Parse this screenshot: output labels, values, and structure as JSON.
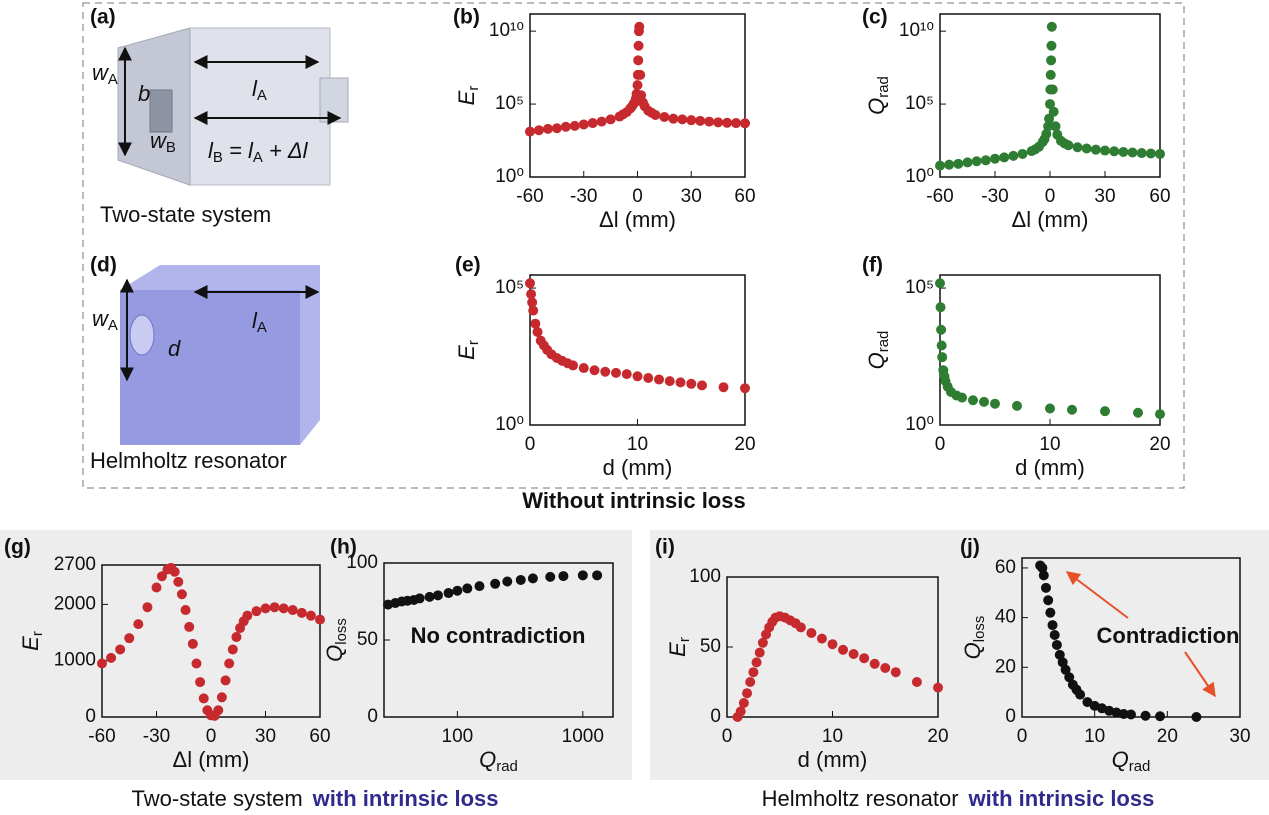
{
  "panels": {
    "a": "(a)",
    "d": "(d)"
  },
  "illustration_a": {
    "w_A": {
      "text": "w",
      "sub": "A"
    },
    "b": "b",
    "w_B": {
      "text": "w",
      "sub": "B"
    },
    "l_A": {
      "text": "l",
      "sub": "A"
    },
    "l_B": [
      {
        "text": "l",
        "sub": "B"
      },
      {
        "text": " = l",
        "sub": "A"
      },
      {
        "text": " + Δl"
      }
    ],
    "caption": "Two-state system"
  },
  "illustration_d": {
    "w_A": {
      "text": "w",
      "sub": "A"
    },
    "d": "d",
    "l_A": {
      "text": "l",
      "sub": "A"
    },
    "caption": "Helmholtz resonator"
  },
  "box_caption": "Without intrinsic loss",
  "bottom_captions": [
    {
      "text": "Two-state system",
      "highlight": "with intrinsic loss"
    },
    {
      "text": "Helmholtz resonator",
      "highlight": "with intrinsic loss"
    }
  ],
  "chart_data": [
    {
      "type": "scatter",
      "panel": "(b)",
      "color": "#c62a2f",
      "x": [
        -60,
        -55,
        -50,
        -45,
        -40,
        -35,
        -30,
        -25,
        -20,
        -15,
        -10,
        -8,
        -6,
        -4,
        -3,
        -2,
        -1,
        -0.5,
        0,
        0.2,
        0.4,
        0.6,
        0.8,
        1,
        1.5,
        2,
        3,
        4,
        6,
        8,
        10,
        15,
        20,
        25,
        30,
        35,
        40,
        45,
        50,
        55,
        60
      ],
      "values": [
        1300,
        1600,
        2000,
        2200,
        2800,
        3200,
        4000,
        5000,
        6300,
        8900,
        14000,
        20000,
        28000,
        50000,
        71000,
        110000,
        220000,
        500000,
        2000000,
        10000000.0,
        100000000.0,
        1000000000.0,
        10000000000.0,
        20000000000.0,
        10000000.0,
        400000,
        130000,
        71000,
        35000,
        25000,
        18000,
        13000,
        10000,
        8900,
        7900,
        7100,
        6300,
        5600,
        5200,
        5000,
        4800
      ],
      "xlim": [
        -60,
        60
      ],
      "xticks": [
        -60,
        -30,
        0,
        30,
        60
      ],
      "ylim": [
        1,
        150000000000.0
      ],
      "ylog": true,
      "yticks": [
        {
          "value": 1,
          "label": "10⁰"
        },
        {
          "value": 100000,
          "label": "10⁵"
        },
        {
          "value": 10000000000.0,
          "label": "10¹⁰"
        }
      ],
      "xlabel": "Δl (mm)",
      "ylabel": {
        "text": "E",
        "sub": "r"
      }
    },
    {
      "type": "scatter",
      "panel": "(c)",
      "color": "#2e7d32",
      "x": [
        -60,
        -55,
        -50,
        -45,
        -40,
        -35,
        -30,
        -25,
        -20,
        -15,
        -10,
        -8,
        -6,
        -4,
        -3,
        -2,
        -1,
        -0.5,
        0,
        0.2,
        0.4,
        0.6,
        0.8,
        1,
        1.5,
        2,
        3,
        4,
        6,
        8,
        10,
        15,
        20,
        25,
        30,
        35,
        40,
        45,
        50,
        55,
        60
      ],
      "values": [
        6,
        7,
        8,
        10,
        12,
        14,
        18,
        22,
        28,
        38,
        60,
        80,
        120,
        250,
        400,
        900,
        3000,
        10000,
        100000,
        1000000.0,
        10000000.0,
        100000000.0,
        1000000000.0,
        20000000000.0,
        1000000.0,
        30000,
        3000,
        800,
        300,
        200,
        150,
        110,
        90,
        75,
        65,
        58,
        52,
        48,
        44,
        41,
        38
      ],
      "xlim": [
        -60,
        60
      ],
      "xticks": [
        -60,
        -30,
        0,
        30,
        60
      ],
      "ylim": [
        1,
        150000000000.0
      ],
      "ylog": true,
      "yticks": [
        {
          "value": 1,
          "label": "10⁰"
        },
        {
          "value": 100000,
          "label": "10⁵"
        },
        {
          "value": 10000000000.0,
          "label": "10¹⁰"
        }
      ],
      "xlabel": "Δl (mm)",
      "ylabel": {
        "text": "Q",
        "sub": "rad"
      }
    },
    {
      "type": "scatter",
      "panel": "(e)",
      "color": "#c62a2f",
      "x": [
        0,
        0.1,
        0.2,
        0.3,
        0.5,
        0.7,
        1,
        1.3,
        1.6,
        2,
        2.5,
        3,
        3.5,
        4,
        5,
        6,
        7,
        8,
        9,
        10,
        11,
        12,
        13,
        14,
        15,
        16,
        18,
        20
      ],
      "values": [
        150000,
        60000,
        30000,
        15000,
        5000,
        2500,
        1200,
        800,
        550,
        380,
        280,
        220,
        180,
        150,
        120,
        100,
        88,
        80,
        72,
        60,
        52,
        46,
        40,
        36,
        32,
        28,
        24,
        22
      ],
      "xlim": [
        0,
        20
      ],
      "xticks": [
        0,
        10,
        20
      ],
      "ylim": [
        1,
        300000
      ],
      "ylog": true,
      "yticks": [
        {
          "value": 1,
          "label": "10⁰"
        },
        {
          "value": 100000,
          "label": "10⁵"
        }
      ],
      "xlabel": "d (mm)",
      "ylabel": {
        "text": "E",
        "sub": "r"
      }
    },
    {
      "type": "scatter",
      "panel": "(f)",
      "color": "#2e7d32",
      "x": [
        0,
        0.05,
        0.1,
        0.15,
        0.2,
        0.3,
        0.4,
        0.5,
        0.7,
        1,
        1.5,
        2,
        3,
        4,
        5,
        7,
        10,
        12,
        15,
        18,
        20
      ],
      "values": [
        150000,
        20000,
        3000,
        800,
        300,
        100,
        60,
        40,
        25,
        16,
        12,
        10,
        8,
        7,
        6,
        5,
        4,
        3.6,
        3.2,
        2.8,
        2.5
      ],
      "xlim": [
        0,
        20
      ],
      "xticks": [
        0,
        10,
        20
      ],
      "ylim": [
        1,
        300000
      ],
      "ylog": true,
      "yticks": [
        {
          "value": 1,
          "label": "10⁰"
        },
        {
          "value": 100000,
          "label": "10⁵"
        }
      ],
      "xlabel": "d (mm)",
      "ylabel": {
        "text": "Q",
        "sub": "rad"
      }
    },
    {
      "type": "scatter",
      "panel": "(g)",
      "color": "#c62a2f",
      "x": [
        -60,
        -55,
        -50,
        -45,
        -40,
        -35,
        -30,
        -27,
        -24,
        -22,
        -20,
        -18,
        -16,
        -14,
        -12,
        -10,
        -8,
        -6,
        -4,
        -2,
        0,
        2,
        4,
        6,
        8,
        10,
        12,
        14,
        16,
        18,
        20,
        25,
        30,
        35,
        40,
        45,
        50,
        55,
        60
      ],
      "values": [
        950,
        1050,
        1200,
        1400,
        1650,
        1950,
        2300,
        2500,
        2620,
        2650,
        2580,
        2400,
        2180,
        1900,
        1600,
        1300,
        950,
        620,
        330,
        120,
        30,
        20,
        120,
        350,
        650,
        950,
        1200,
        1420,
        1580,
        1700,
        1800,
        1880,
        1930,
        1950,
        1930,
        1900,
        1850,
        1800,
        1730
      ],
      "xlim": [
        -60,
        60
      ],
      "xticks": [
        -60,
        -30,
        0,
        30,
        60
      ],
      "ylim": [
        0,
        2700
      ],
      "yticks": [
        0,
        1000,
        2000,
        2700
      ],
      "xlabel": "Δl (mm)",
      "ylabel": {
        "text": "E",
        "sub": "r"
      }
    },
    {
      "type": "scatter",
      "panel": "(h)",
      "color": "#111111",
      "x": [
        28,
        32,
        36,
        40,
        45,
        50,
        60,
        70,
        85,
        100,
        120,
        150,
        200,
        250,
        320,
        400,
        550,
        700,
        1000,
        1300
      ],
      "values": [
        73,
        74,
        75,
        75.5,
        76,
        77,
        78,
        79,
        80.5,
        82,
        83.5,
        85,
        86.5,
        88,
        89,
        90,
        91,
        91.5,
        92,
        92
      ],
      "xlim": [
        26,
        1740
      ],
      "xlog": true,
      "xticks": [
        100,
        1000
      ],
      "ylim": [
        0,
        100
      ],
      "yticks": [
        0,
        50,
        100
      ],
      "xlabel": {
        "text": "Q",
        "sub": "rad"
      },
      "ylabel": {
        "text": "Q",
        "sub": "loss"
      },
      "annotation": {
        "text": "No contradiction",
        "color": "#e8502a"
      }
    },
    {
      "type": "scatter",
      "panel": "(i)",
      "color": "#c62a2f",
      "x": [
        1,
        1.3,
        1.6,
        1.9,
        2.2,
        2.5,
        2.8,
        3.1,
        3.4,
        3.7,
        4,
        4.3,
        4.6,
        5,
        5.5,
        6,
        6.5,
        7,
        8,
        9,
        10,
        11,
        12,
        13,
        14,
        15,
        16,
        18,
        20
      ],
      "values": [
        0,
        4,
        10,
        17,
        25,
        32,
        39,
        46,
        53,
        59,
        64,
        68,
        71,
        72,
        71,
        69,
        67,
        64,
        60,
        56,
        52,
        48,
        45,
        42,
        38,
        35,
        32,
        25,
        21
      ],
      "xlim": [
        0,
        20
      ],
      "xticks": [
        0,
        10,
        20
      ],
      "ylim": [
        0,
        100
      ],
      "yticks": [
        0,
        50,
        100
      ],
      "xlabel": "d (mm)",
      "ylabel": {
        "text": "E",
        "sub": "r"
      }
    },
    {
      "type": "scatter",
      "panel": "(j)",
      "color": "#111111",
      "x": [
        2.5,
        2.8,
        3,
        3.3,
        3.6,
        3.9,
        4.2,
        4.5,
        4.8,
        5.2,
        5.6,
        6,
        6.5,
        7,
        7.5,
        8,
        9,
        10,
        11,
        12,
        13,
        14,
        15,
        17,
        19,
        24
      ],
      "values": [
        61,
        60,
        57,
        52,
        47,
        42,
        37,
        33,
        29,
        25,
        22,
        19,
        16,
        13,
        11,
        9,
        6,
        4.5,
        3.5,
        2.5,
        1.8,
        1.2,
        1,
        0.5,
        0.3,
        0
      ],
      "xlim": [
        0,
        30
      ],
      "xticks": [
        0,
        10,
        20,
        30
      ],
      "ylim": [
        0,
        64
      ],
      "yticks": [
        0,
        20,
        40,
        60
      ],
      "xlabel": {
        "text": "Q",
        "sub": "rad"
      },
      "ylabel": {
        "text": "Q",
        "sub": "loss"
      },
      "annotation": {
        "text": "Contradiction",
        "color": "#e8502a"
      }
    }
  ]
}
